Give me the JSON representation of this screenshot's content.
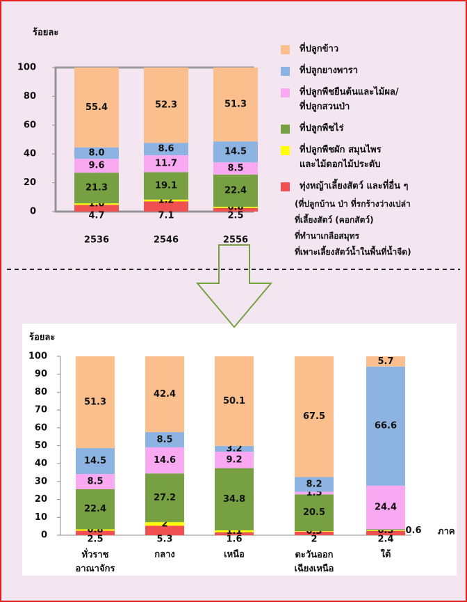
{
  "chart_data": [
    {
      "type": "stacked_bar",
      "y_label": "ร้อยละ",
      "categories": [
        "2536",
        "2546",
        "2556"
      ],
      "ylim": [
        0,
        100
      ],
      "yticks": [
        0,
        20,
        40,
        60,
        80,
        100
      ],
      "series": [
        {
          "name": "ทุ่งหญ้าเลี้ยงสัตว์ และที่อื่น ๆ",
          "color": "#f05050",
          "values": [
            4.7,
            7.1,
            2.5
          ],
          "value_labels": [
            "4.7",
            "7.1",
            "2.5"
          ]
        },
        {
          "name": "ที่ปลูกพืชผัก สมุนไพร\nและไม้ดอกไม้ประดับ",
          "color": "#ffff00",
          "values": [
            1.0,
            1.2,
            0.8
          ],
          "value_labels": [
            "1.0",
            "1.2",
            "0.8"
          ]
        },
        {
          "name": "ที่ปลูกพืชไร่",
          "color": "#77a043",
          "values": [
            21.3,
            19.1,
            22.4
          ],
          "value_labels": [
            "21.3",
            "19.1",
            "22.4"
          ]
        },
        {
          "name": "ที่ปลูกพืชยืนต้นและไม้ผล/\nที่ปลูกสวนป่า",
          "color": "#f9a8f2",
          "values": [
            9.6,
            11.7,
            8.5
          ],
          "value_labels": [
            "9.6",
            "11.7",
            "8.5"
          ]
        },
        {
          "name": "ที่ปลูกยางพารา",
          "color": "#8db3e2",
          "values": [
            8.0,
            8.6,
            14.5
          ],
          "value_labels": [
            "8.0",
            "8.6",
            "14.5"
          ]
        },
        {
          "name": "ที่ปลูกข้าว",
          "color": "#fbbf8d",
          "values": [
            55.4,
            52.3,
            51.3
          ],
          "value_labels": [
            "55.4",
            "52.3",
            "51.3"
          ]
        }
      ],
      "legend_note": [
        "(ที่ปลูกบ้าน ป่า ที่รกร้างว่างเปล่า",
        "ที่เลี้ยงสัตว์ (คอกสัตว์)",
        "ที่ทำนาเกลือสมุทร",
        "ที่เพาะเลี้ยงสัตว์น้ำในพื้นที่น้ำจืด)"
      ]
    },
    {
      "type": "stacked_bar",
      "y_label": "ร้อยละ",
      "x_label": "ภาค",
      "categories": [
        "ทั่วราช\nอาณาจักร",
        "กลาง",
        "เหนือ",
        "ตะวันออก\nเฉียงเหนือ",
        "ใต้"
      ],
      "ylim": [
        0,
        100
      ],
      "yticks": [
        0,
        10,
        20,
        30,
        40,
        50,
        60,
        70,
        80,
        90,
        100
      ],
      "series": [
        {
          "color": "#f05050",
          "values": [
            2.5,
            5.3,
            1.6,
            2.0,
            2.4
          ]
        },
        {
          "color": "#ffff00",
          "values": [
            0.8,
            2.0,
            1.1,
            0.3,
            0.3
          ]
        },
        {
          "color": "#77a043",
          "values": [
            22.4,
            27.2,
            34.8,
            20.5,
            0.6
          ]
        },
        {
          "color": "#f9a8f2",
          "values": [
            8.5,
            14.6,
            9.2,
            1.5,
            24.4
          ]
        },
        {
          "color": "#8db3e2",
          "values": [
            14.5,
            8.5,
            3.2,
            8.2,
            66.6
          ]
        },
        {
          "color": "#fbbf8d",
          "values": [
            51.3,
            42.4,
            50.1,
            67.5,
            5.7
          ]
        }
      ]
    }
  ]
}
